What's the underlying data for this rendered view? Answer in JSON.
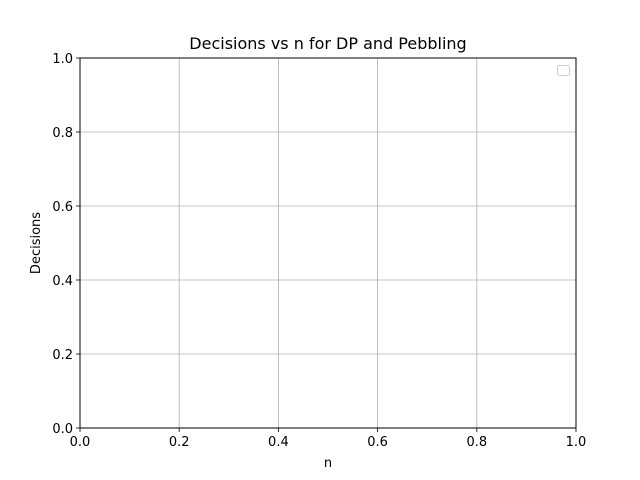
{
  "chart_data": {
    "type": "line",
    "title": "Decisions vs n for DP and Pebbling",
    "xlabel": "n",
    "ylabel": "Decisions",
    "xlim": [
      0.0,
      1.0
    ],
    "ylim": [
      0.0,
      1.0
    ],
    "xticks": [
      "0.0",
      "0.2",
      "0.4",
      "0.6",
      "0.8",
      "1.0"
    ],
    "yticks": [
      "0.0",
      "0.2",
      "0.4",
      "0.6",
      "0.8",
      "1.0"
    ],
    "grid": true,
    "legend": {
      "location": "top-right",
      "entries": []
    },
    "series": []
  }
}
